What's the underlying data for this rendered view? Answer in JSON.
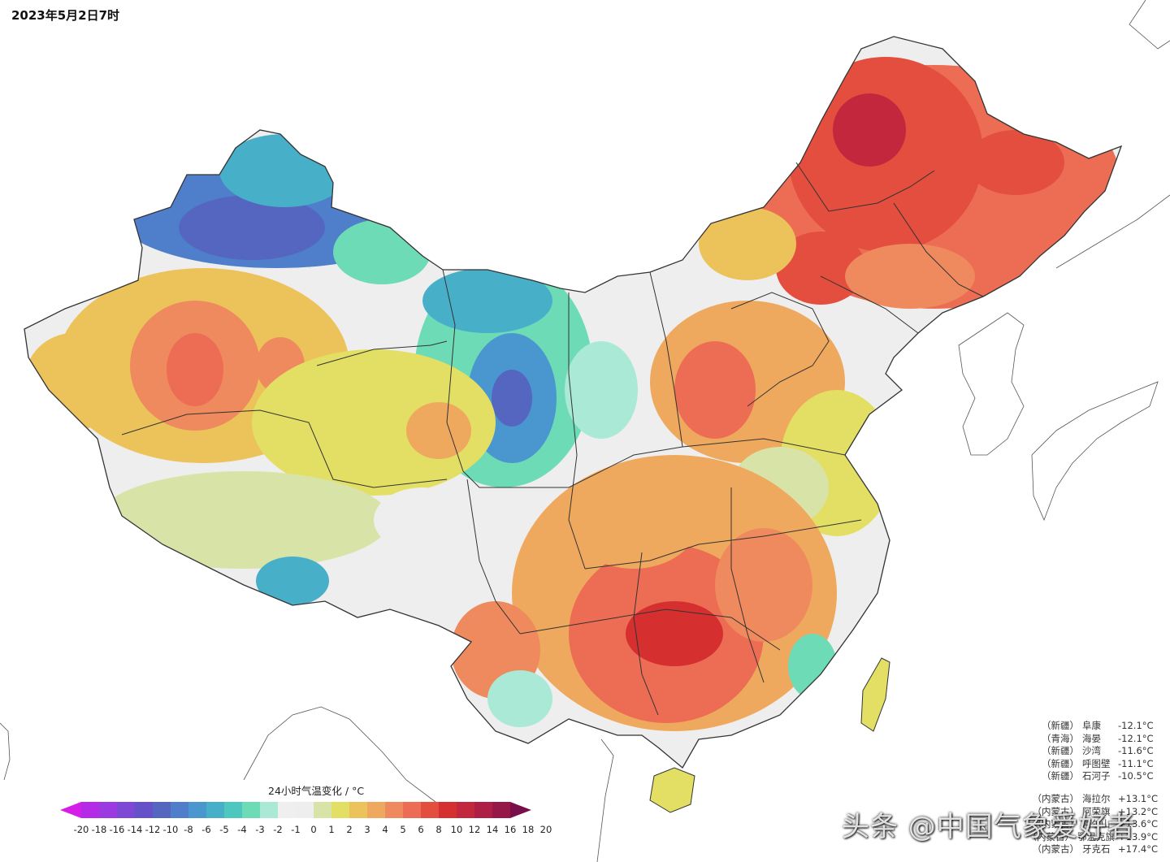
{
  "title": "2023年5月2日7时",
  "legend": {
    "title": "24小时气温变化 / °C",
    "ticks": [
      "-20",
      "-18",
      "-16",
      "-14",
      "-12",
      "-10",
      "-8",
      "-6",
      "-5",
      "-4",
      "-3",
      "-2",
      "-1",
      "0",
      "1",
      "2",
      "3",
      "4",
      "5",
      "6",
      "8",
      "10",
      "12",
      "14",
      "16",
      "18",
      "20"
    ],
    "colors": [
      "#d31fe8",
      "#b52ae6",
      "#9a3ae0",
      "#7e47d6",
      "#6652c8",
      "#5566c0",
      "#4f7fca",
      "#4a97d0",
      "#48afc9",
      "#4ec7be",
      "#6ddbb6",
      "#a9e9d6",
      "#efefef",
      "#eeeeee",
      "#d8e3a8",
      "#e3df64",
      "#ecc35a",
      "#efa95e",
      "#ef8a5e",
      "#ec6d53",
      "#e34e3e",
      "#d52f2f",
      "#c3273e",
      "#ad1f45",
      "#951848",
      "#7a0e4a"
    ]
  },
  "cold_stations": [
    {
      "province": "（新疆）",
      "name": "阜康",
      "value": "-12.1°C"
    },
    {
      "province": "（青海）",
      "name": "海晏",
      "value": "-12.1°C"
    },
    {
      "province": "（新疆）",
      "name": "沙湾",
      "value": "-11.6°C"
    },
    {
      "province": "（新疆）",
      "name": "呼图壁",
      "value": "-11.1°C"
    },
    {
      "province": "（新疆）",
      "name": "石河子",
      "value": "-10.5°C"
    }
  ],
  "warm_stations": [
    {
      "province": "（内蒙古）",
      "name": "海拉尔",
      "value": "+13.1°C"
    },
    {
      "province": "（内蒙古）",
      "name": "阿荣旗",
      "value": "+13.2°C"
    },
    {
      "province": "（内蒙古）",
      "name": "阿尔山",
      "value": "+13.6°C"
    },
    {
      "province": "（内蒙古）",
      "name": "鄂温克旗",
      "value": "+13.9°C"
    },
    {
      "province": "（内蒙古）",
      "name": "牙克石",
      "value": "+17.4°C"
    }
  ],
  "watermark": "头条 @中国气象爱好者"
}
